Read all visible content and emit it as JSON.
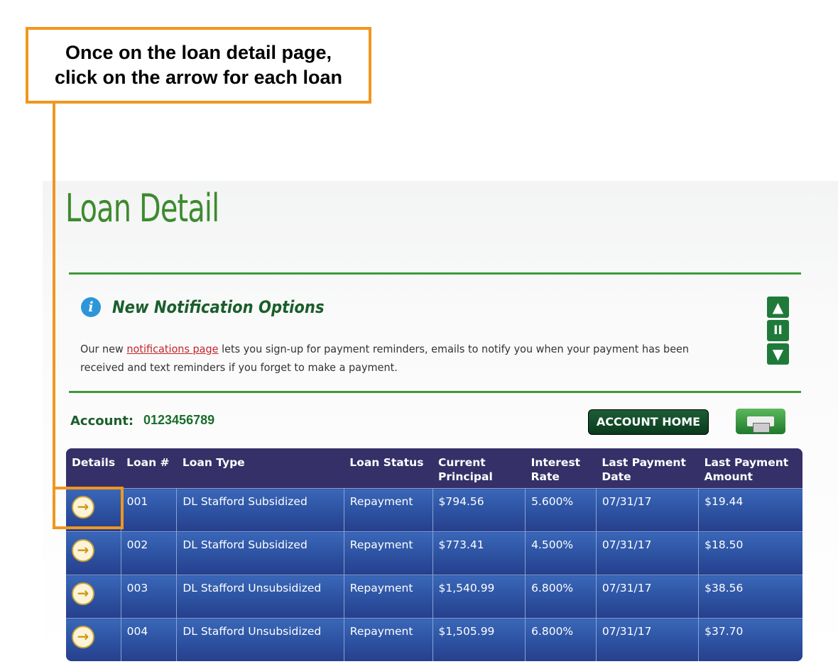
{
  "callout": {
    "text": "Once on the loan detail page,\nclick on the arrow for each loan"
  },
  "page": {
    "title": "Loan Detail"
  },
  "notification": {
    "title": "New Notification Options",
    "text_before": "Our new ",
    "link": "notifications page",
    "text_after": " lets you sign-up for payment reminders, emails to notify you when your payment has been received and text reminders if you forget to make a payment.",
    "controls": {
      "up": "▲",
      "pause": "II",
      "down": "▼"
    }
  },
  "account": {
    "label": "Account:",
    "number": "0123456789",
    "home_button": "ACCOUNT HOME"
  },
  "table": {
    "headers": [
      "Details",
      "Loan #",
      "Loan Type",
      "Loan Status",
      "Current Principal",
      "Interest Rate",
      "Last Payment Date",
      "Last Payment Amount"
    ],
    "rows": [
      {
        "loan": "001",
        "type": "DL Stafford Subsidized",
        "status": "Repayment",
        "principal": "$794.56",
        "rate": "5.600%",
        "date": "07/31/17",
        "amount": "$19.44"
      },
      {
        "loan": "002",
        "type": "DL Stafford Subsidized",
        "status": "Repayment",
        "principal": "$773.41",
        "rate": "4.500%",
        "date": "07/31/17",
        "amount": "$18.50"
      },
      {
        "loan": "003",
        "type": "DL Stafford Unsubsidized",
        "status": "Repayment",
        "principal": "$1,540.99",
        "rate": "6.800%",
        "date": "07/31/17",
        "amount": "$38.56"
      },
      {
        "loan": "004",
        "type": "DL Stafford Unsubsidized",
        "status": "Repayment",
        "principal": "$1,505.99",
        "rate": "6.800%",
        "date": "07/31/17",
        "amount": "$37.70"
      }
    ]
  },
  "colors": {
    "accent": "#f0961e",
    "green": "#3d8a2f",
    "header": "#363068",
    "row": "#2b4f9e"
  }
}
